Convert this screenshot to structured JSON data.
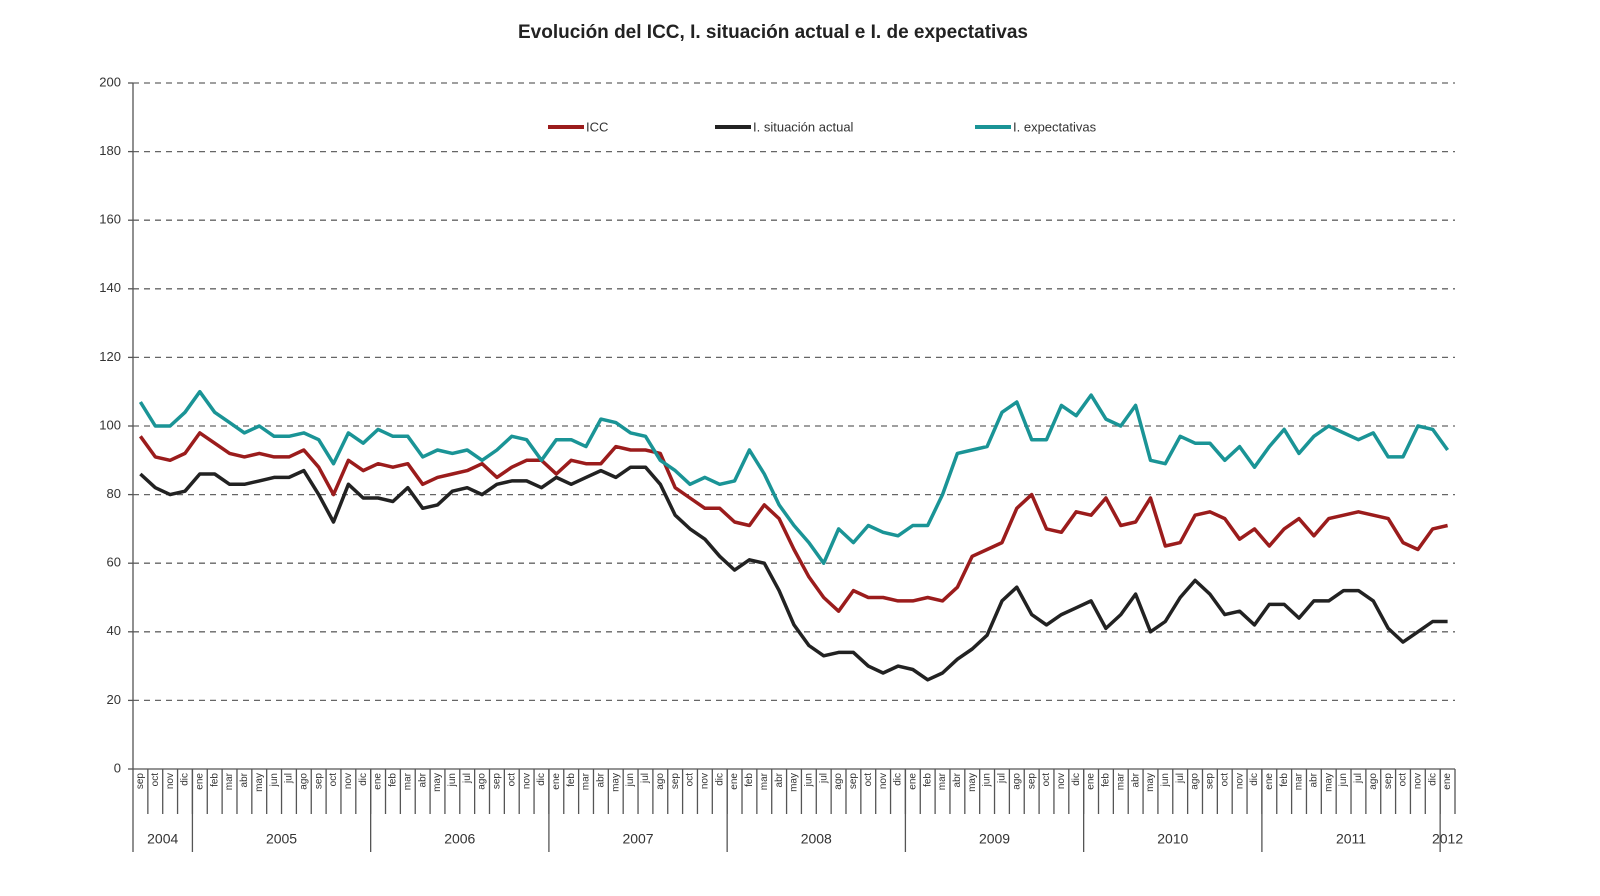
{
  "chart_data": {
    "type": "line",
    "title": "Evolución del ICC, I. situación actual e I. de expectativas",
    "groups": [
      {
        "year": "2004",
        "months": [
          "sep",
          "oct",
          "nov",
          "dic"
        ]
      },
      {
        "year": "2005",
        "months": [
          "ene",
          "feb",
          "mar",
          "abr",
          "may",
          "jun",
          "jul",
          "ago",
          "sep",
          "oct",
          "nov",
          "dic"
        ]
      },
      {
        "year": "2006",
        "months": [
          "ene",
          "feb",
          "mar",
          "abr",
          "may",
          "jun",
          "jul",
          "ago",
          "sep",
          "oct",
          "nov",
          "dic"
        ]
      },
      {
        "year": "2007",
        "months": [
          "ene",
          "feb",
          "mar",
          "abr",
          "may",
          "jun",
          "jul",
          "ago",
          "sep",
          "oct",
          "nov",
          "dic"
        ]
      },
      {
        "year": "2008",
        "months": [
          "ene",
          "feb",
          "mar",
          "abr",
          "may",
          "jun",
          "jul",
          "ago",
          "sep",
          "oct",
          "nov",
          "dic"
        ]
      },
      {
        "year": "2009",
        "months": [
          "ene",
          "feb",
          "mar",
          "abr",
          "may",
          "jun",
          "jul",
          "ago",
          "sep",
          "oct",
          "nov",
          "dic"
        ]
      },
      {
        "year": "2010",
        "months": [
          "ene",
          "feb",
          "mar",
          "abr",
          "may",
          "jun",
          "jul",
          "ago",
          "sep",
          "oct",
          "nov",
          "dic"
        ]
      },
      {
        "year": "2011",
        "months": [
          "ene",
          "feb",
          "mar",
          "abr",
          "may",
          "jun",
          "jul",
          "ago",
          "sep",
          "oct",
          "nov",
          "dic"
        ]
      },
      {
        "year": "2012",
        "months": [
          "ene"
        ]
      }
    ],
    "series": [
      {
        "name": "ICC",
        "color": "#9b1c1c",
        "values": [
          97,
          91,
          90,
          92,
          98,
          95,
          92,
          91,
          92,
          91,
          91,
          93,
          88,
          80,
          90,
          87,
          89,
          88,
          89,
          83,
          85,
          86,
          87,
          89,
          85,
          88,
          90,
          90,
          86,
          90,
          89,
          89,
          94,
          93,
          93,
          92,
          82,
          79,
          76,
          76,
          72,
          71,
          77,
          73,
          64,
          56,
          50,
          46,
          52,
          50,
          50,
          49,
          49,
          50,
          49,
          53,
          62,
          64,
          66,
          76,
          80,
          70,
          69,
          75,
          74,
          79,
          71,
          72,
          79,
          65,
          66,
          74,
          75,
          73,
          67,
          70,
          65,
          70,
          73,
          68,
          73,
          74,
          75,
          74,
          73,
          66,
          64,
          70,
          71
        ]
      },
      {
        "name": "I. situación actual",
        "color": "#222222",
        "values": [
          86,
          82,
          80,
          81,
          86,
          86,
          83,
          83,
          84,
          85,
          85,
          87,
          80,
          72,
          83,
          79,
          79,
          78,
          82,
          76,
          77,
          81,
          82,
          80,
          83,
          84,
          84,
          82,
          85,
          83,
          85,
          87,
          85,
          88,
          88,
          83,
          74,
          70,
          67,
          62,
          58,
          61,
          60,
          52,
          42,
          36,
          33,
          34,
          34,
          30,
          28,
          30,
          29,
          26,
          28,
          32,
          35,
          39,
          49,
          53,
          45,
          42,
          45,
          47,
          49,
          41,
          45,
          51,
          40,
          43,
          50,
          55,
          51,
          45,
          46,
          42,
          48,
          48,
          44,
          49,
          49,
          52,
          52,
          49,
          41,
          37,
          40,
          43,
          43
        ]
      },
      {
        "name": "I. expectativas",
        "color": "#1a9496",
        "values": [
          107,
          100,
          100,
          104,
          110,
          104,
          101,
          98,
          100,
          97,
          97,
          98,
          96,
          89,
          98,
          95,
          99,
          97,
          97,
          91,
          93,
          92,
          93,
          90,
          93,
          97,
          96,
          90,
          96,
          96,
          94,
          102,
          101,
          98,
          97,
          90,
          87,
          83,
          85,
          83,
          84,
          93,
          86,
          77,
          71,
          66,
          60,
          70,
          66,
          71,
          69,
          68,
          71,
          71,
          80,
          92,
          93,
          94,
          104,
          107,
          96,
          96,
          106,
          103,
          109,
          102,
          100,
          106,
          90,
          89,
          97,
          95,
          95,
          90,
          94,
          88,
          94,
          99,
          92,
          97,
          100,
          98,
          96,
          98,
          91,
          91,
          100,
          99,
          93
        ]
      }
    ],
    "ylim": [
      0,
      200
    ],
    "yticks": [
      0,
      20,
      40,
      60,
      80,
      100,
      120,
      140,
      160,
      180,
      200
    ],
    "grid": true
  }
}
